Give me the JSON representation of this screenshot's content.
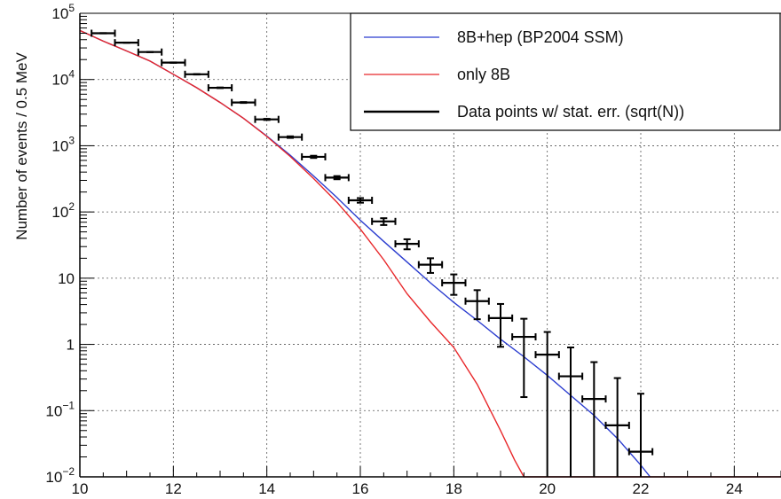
{
  "chart_data": {
    "type": "scatter",
    "title": "",
    "xlabel": "",
    "ylabel": "Number of events / 0.5 MeV",
    "xlim": [
      10,
      25
    ],
    "ylim": [
      0.01,
      100000
    ],
    "yscale": "log",
    "grid": true,
    "legend_position": "top-right",
    "x_ticks": [
      10,
      12,
      14,
      16,
      18,
      20,
      22,
      24
    ],
    "x_tick_labels": [
      "10",
      "12",
      "14",
      "16",
      "18",
      "20",
      "22",
      "24"
    ],
    "y_ticks": [
      {
        "value": 0.01,
        "base": "10",
        "exp": "−2"
      },
      {
        "value": 0.1,
        "base": "10",
        "exp": "−1"
      },
      {
        "value": 1,
        "base": "1",
        "exp": ""
      },
      {
        "value": 10,
        "base": "10",
        "exp": ""
      },
      {
        "value": 100,
        "base": "10",
        "exp": "2"
      },
      {
        "value": 1000,
        "base": "10",
        "exp": "3"
      },
      {
        "value": 10000,
        "base": "10",
        "exp": "4"
      },
      {
        "value": 100000,
        "base": "10",
        "exp": "5"
      }
    ],
    "series": [
      {
        "name": "8B+hep (BP2004 SSM)",
        "kind": "line",
        "color": "#2a3ccf",
        "x": [
          10.0,
          10.5,
          11.0,
          11.5,
          12.0,
          12.5,
          13.0,
          13.5,
          14.0,
          14.5,
          15.0,
          15.5,
          16.0,
          16.5,
          17.0,
          17.5,
          18.0,
          18.5,
          19.0,
          19.5,
          20.0,
          20.5,
          21.0,
          21.5,
          22.0,
          22.2
        ],
        "y": [
          55000,
          38000,
          27000,
          19000,
          12000,
          7500,
          4500,
          2600,
          1400,
          720,
          350,
          165,
          75,
          36,
          17.5,
          8.5,
          4.3,
          2.3,
          1.2,
          0.65,
          0.34,
          0.17,
          0.085,
          0.038,
          0.015,
          0.01
        ]
      },
      {
        "name": "only 8B",
        "kind": "line",
        "color": "#e8272a",
        "x": [
          10.0,
          10.5,
          11.0,
          11.5,
          12.0,
          12.5,
          13.0,
          13.5,
          14.0,
          14.5,
          15.0,
          15.5,
          16.0,
          16.5,
          17.0,
          17.5,
          18.0,
          18.5,
          19.0,
          19.3,
          19.5,
          25.0
        ],
        "y": [
          55000,
          38000,
          27000,
          19000,
          12000,
          7500,
          4500,
          2600,
          1380,
          690,
          320,
          140,
          55,
          19,
          5.8,
          2.2,
          0.9,
          0.25,
          0.05,
          0.018,
          0.01,
          0.01
        ]
      },
      {
        "name": "Data points w/ stat. err. (sqrt(N))",
        "kind": "points",
        "color": "#000000",
        "x_half_width": 0.25,
        "x": [
          10.5,
          11.0,
          11.5,
          12.0,
          12.5,
          13.0,
          13.5,
          14.0,
          14.5,
          15.0,
          15.5,
          16.0,
          16.5,
          17.0,
          17.5,
          18.0,
          18.5,
          19.0,
          19.5,
          20.0,
          20.5,
          21.0,
          21.5,
          22.0
        ],
        "y": [
          50000,
          36000,
          26000,
          18000,
          12000,
          7500,
          4500,
          2500,
          1350,
          680,
          330,
          150,
          72,
          33,
          16,
          8.5,
          4.5,
          2.5,
          1.3,
          0.7,
          0.33,
          0.15,
          0.06,
          0.024
        ],
        "y_low": [
          49776,
          35810,
          25839,
          17866,
          11890,
          7413,
          4433,
          2450,
          1313,
          654,
          312,
          138,
          63.5,
          27.3,
          12,
          5.6,
          2.4,
          0.92,
          0.16,
          0.01,
          0.01,
          0.01,
          0.01,
          0.01
        ],
        "y_high": [
          50224,
          36190,
          26161,
          18134,
          12110,
          7587,
          4567,
          2550,
          1387,
          706,
          348,
          162,
          80.5,
          38.7,
          20,
          11.4,
          6.6,
          4.08,
          2.44,
          1.54,
          0.9,
          0.54,
          0.31,
          0.18
        ]
      }
    ]
  }
}
